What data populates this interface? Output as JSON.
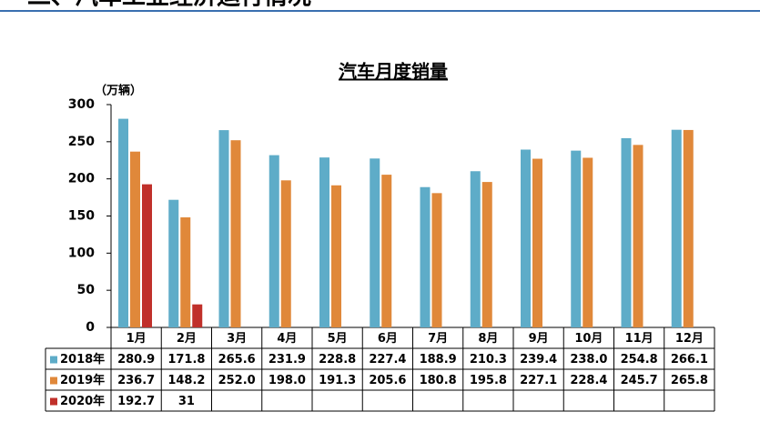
{
  "header": {
    "title": "二、汽车工业经济运行情况"
  },
  "chart_data": {
    "type": "bar",
    "title": "汽车月度销量",
    "y_label": "（万辆）",
    "categories": [
      "1月",
      "2月",
      "3月",
      "4月",
      "5月",
      "6月",
      "7月",
      "8月",
      "9月",
      "10月",
      "11月",
      "12月"
    ],
    "series": [
      {
        "name": "2018年",
        "color": "#5eacc8",
        "values": [
          280.9,
          171.8,
          265.6,
          231.9,
          228.8,
          227.4,
          188.9,
          210.3,
          239.4,
          238.0,
          254.8,
          266.1
        ],
        "value_labels": [
          "280.9",
          "171.8",
          "265.6",
          "231.9",
          "228.8",
          "227.4",
          "188.9",
          "210.3",
          "239.4",
          "238.0",
          "254.8",
          "266.1"
        ]
      },
      {
        "name": "2019年",
        "color": "#e0883a",
        "values": [
          236.7,
          148.2,
          252.0,
          198.0,
          191.3,
          205.6,
          180.8,
          195.8,
          227.1,
          228.4,
          245.7,
          265.8
        ],
        "value_labels": [
          "236.7",
          "148.2",
          "252.0",
          "198.0",
          "191.3",
          "205.6",
          "180.8",
          "195.8",
          "227.1",
          "228.4",
          "245.7",
          "265.8"
        ]
      },
      {
        "name": "2020年",
        "color": "#c0302a",
        "values": [
          192.7,
          31,
          null,
          null,
          null,
          null,
          null,
          null,
          null,
          null,
          null,
          null
        ],
        "value_labels": [
          "192.7",
          "31",
          null,
          null,
          null,
          null,
          null,
          null,
          null,
          null,
          null,
          null
        ]
      }
    ],
    "ylim": [
      0,
      300
    ],
    "yticks": [
      0,
      50,
      100,
      150,
      200,
      250,
      300
    ],
    "grid": false
  }
}
